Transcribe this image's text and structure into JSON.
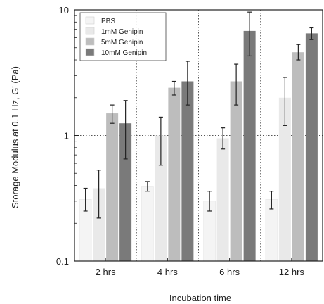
{
  "chart_data": {
    "type": "bar",
    "yscale": "log",
    "ylim": [
      0.1,
      10
    ],
    "xlabel": "Incubation time",
    "ylabel": "Storage Modulus at 0.1 Hz, G' (Pa)",
    "categories": [
      "2 hrs",
      "4 hrs",
      "6 hrs",
      "12 hrs"
    ],
    "yticks": [
      "0.1",
      "1",
      "10"
    ],
    "grid": "dotted, major ticks only",
    "legend_position": "top-left",
    "series": [
      {
        "name": "PBS",
        "color": "#f4f4f4",
        "values": [
          0.31,
          0.39,
          0.3,
          0.31
        ],
        "errors": [
          [
            0.25,
            0.38
          ],
          [
            0.36,
            0.43
          ],
          [
            0.25,
            0.36
          ],
          [
            0.26,
            0.36
          ]
        ]
      },
      {
        "name": "1mM Genipin",
        "color": "#e9e9e9",
        "values": [
          0.38,
          1.0,
          0.95,
          2.0
        ],
        "errors": [
          [
            0.22,
            0.53
          ],
          [
            0.58,
            1.4
          ],
          [
            0.78,
            1.15
          ],
          [
            1.2,
            2.9
          ]
        ]
      },
      {
        "name": "5mM Genipin",
        "color": "#bdbdbd",
        "values": [
          1.5,
          2.4,
          2.7,
          4.6
        ],
        "errors": [
          [
            1.25,
            1.75
          ],
          [
            2.1,
            2.7
          ],
          [
            1.75,
            3.7
          ],
          [
            4.0,
            5.3
          ]
        ]
      },
      {
        "name": "10mM Genipin",
        "color": "#7a7a7a",
        "values": [
          1.25,
          2.7,
          6.8,
          6.5
        ],
        "errors": [
          [
            0.65,
            1.9
          ],
          [
            1.75,
            3.9
          ],
          [
            4.3,
            9.6
          ],
          [
            5.8,
            7.2
          ]
        ]
      }
    ]
  }
}
